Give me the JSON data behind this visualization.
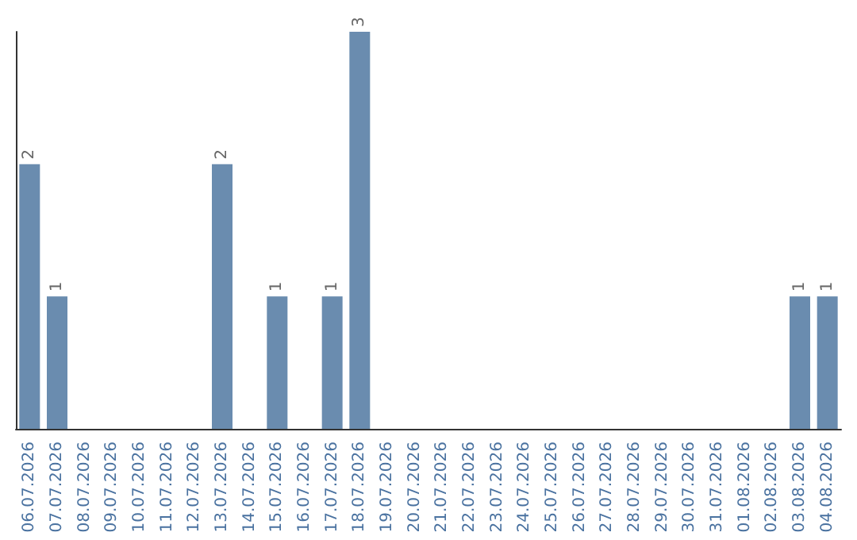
{
  "chart_data": {
    "type": "bar",
    "categories": [
      "06.07.2026",
      "07.07.2026",
      "08.07.2026",
      "09.07.2026",
      "10.07.2026",
      "11.07.2026",
      "12.07.2026",
      "13.07.2026",
      "14.07.2026",
      "15.07.2026",
      "16.07.2026",
      "17.07.2026",
      "18.07.2026",
      "19.07.2026",
      "20.07.2026",
      "21.07.2026",
      "22.07.2026",
      "23.07.2026",
      "24.07.2026",
      "25.07.2026",
      "26.07.2026",
      "27.07.2026",
      "28.07.2026",
      "29.07.2026",
      "30.07.2026",
      "31.07.2026",
      "01.08.2026",
      "02.08.2026",
      "03.08.2026",
      "04.08.2026"
    ],
    "values": [
      2,
      1,
      0,
      0,
      0,
      0,
      0,
      2,
      0,
      1,
      0,
      1,
      3,
      0,
      0,
      0,
      0,
      0,
      0,
      0,
      0,
      0,
      0,
      0,
      0,
      0,
      0,
      0,
      1,
      1
    ],
    "value_labels": [
      "2",
      "1",
      null,
      null,
      null,
      null,
      null,
      "2",
      null,
      "1",
      null,
      "1",
      "3",
      null,
      null,
      null,
      null,
      null,
      null,
      null,
      null,
      null,
      null,
      null,
      null,
      null,
      null,
      null,
      "1",
      "1"
    ],
    "color": "#6a8caf",
    "tick_labels": "x"
  }
}
